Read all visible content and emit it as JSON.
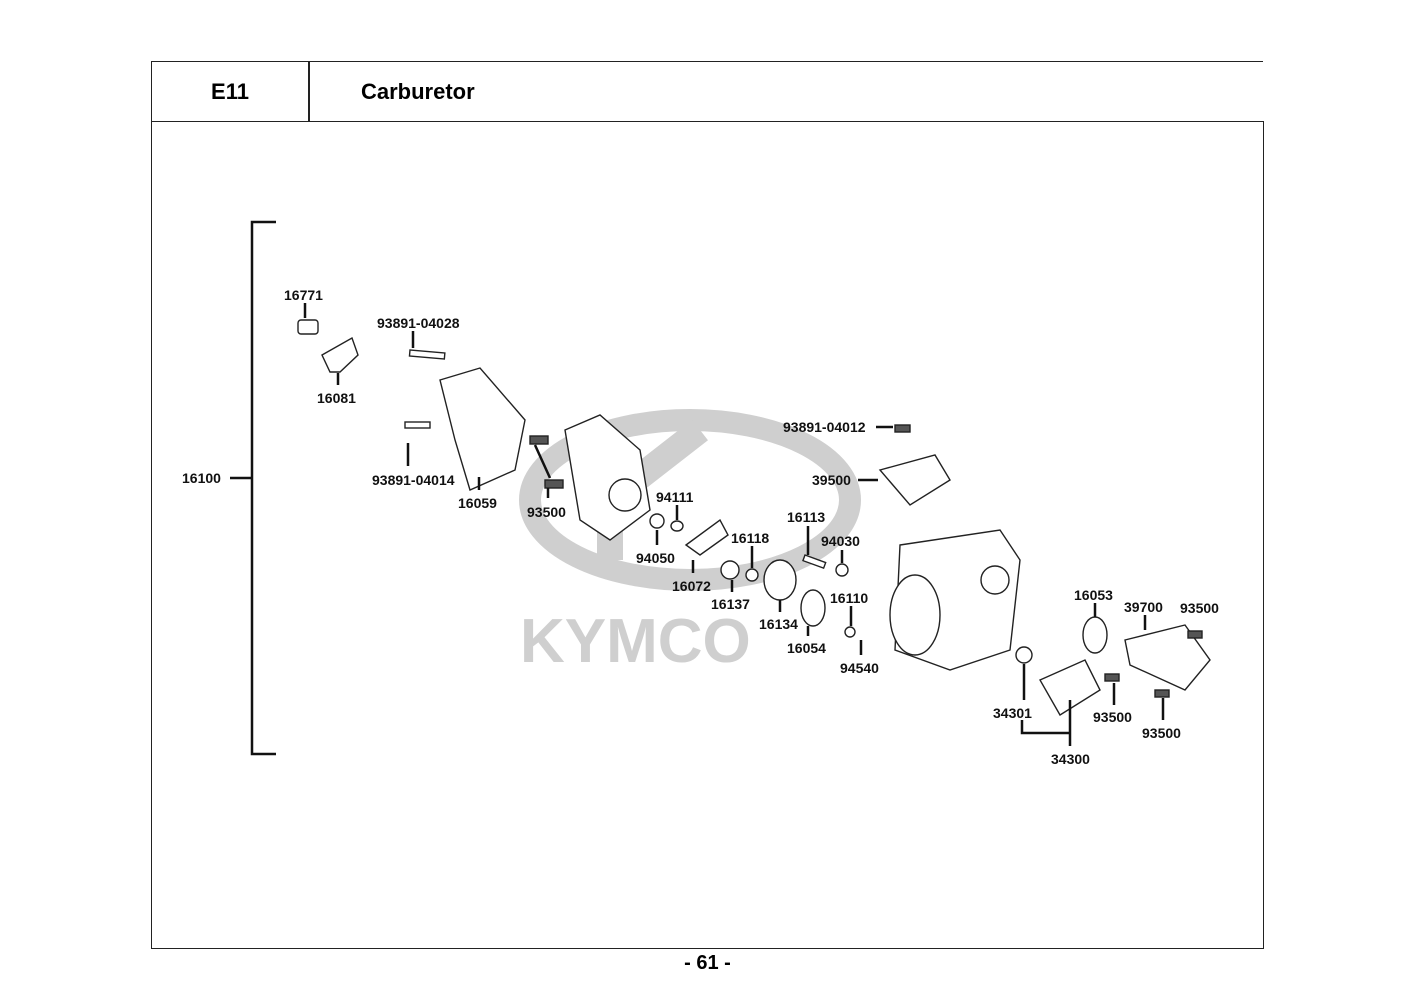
{
  "header": {
    "code": "E11",
    "title": "Carburetor"
  },
  "watermark": "KYMCO",
  "page_number": "- 61 -",
  "assembly_label": "16100",
  "parts": [
    "16771",
    "93891-04028",
    "16081",
    "93891-04014",
    "16059",
    "93500",
    "94111",
    "94050",
    "16072",
    "16118",
    "16137",
    "16113",
    "94030",
    "16134",
    "16054",
    "16110",
    "94540",
    "93891-04012",
    "39500",
    "16053",
    "39700",
    "93500",
    "93500",
    "93500",
    "34301",
    "34300"
  ],
  "colors": {
    "line": "#111111",
    "watermark": "#cccccc"
  }
}
